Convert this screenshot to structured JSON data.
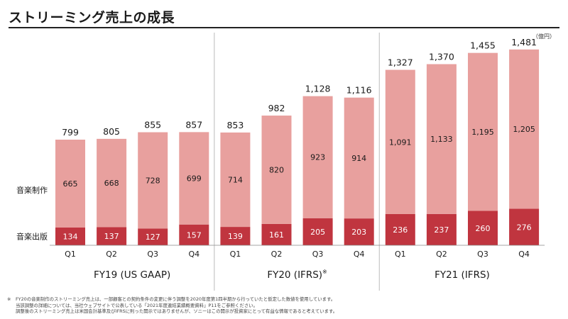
{
  "title": "ストリーミング売上の成長",
  "unit": "（億円）",
  "footnote": {
    "mark": "※",
    "lines": [
      "FY20の音楽制作のストリーミング売上は、一部顧客との契約条件の変更に伴う調整を2020年度第1四半期から行っていたと仮定した数値を使用しています。",
      "当該調整の詳細については、当社ウェブサイトで公表している「2021年度連結業績概要資料」P11をご参照ください。",
      "調整後のストリーミング売上は米国会計基準及びIFRSに則った開示ではありませんが、ソニーはこの開示が投資家にとって有益な情報であると考えています。"
    ]
  },
  "colors": {
    "recorded_music": "#e8a09e",
    "publishing": "#c0353f",
    "divider": "#bbbbbb"
  },
  "chart_data": {
    "type": "bar",
    "stacked": true,
    "categories": [
      "Q1",
      "Q2",
      "Q3",
      "Q4",
      "Q1",
      "Q2",
      "Q3",
      "Q4",
      "Q1",
      "Q2",
      "Q3",
      "Q4"
    ],
    "groups": [
      {
        "label": "FY19 (US GAAP)",
        "superscript": "",
        "start": 0,
        "end": 3
      },
      {
        "label": "FY20 (IFRS)",
        "superscript": "※",
        "start": 4,
        "end": 7
      },
      {
        "label": "FY21 (IFRS)",
        "superscript": "",
        "start": 8,
        "end": 11
      }
    ],
    "series": [
      {
        "name": "音楽出版",
        "values": [
          134,
          137,
          127,
          157,
          139,
          161,
          205,
          203,
          236,
          237,
          260,
          276
        ]
      },
      {
        "name": "音楽制作",
        "values": [
          665,
          668,
          728,
          699,
          714,
          820,
          923,
          914,
          1091,
          1133,
          1195,
          1205
        ]
      }
    ],
    "totals": [
      "799",
      "805",
      "855",
      "857",
      "853",
      "982",
      "1,128",
      "1,116",
      "1,327",
      "1,370",
      "1,455",
      "1,481"
    ],
    "segment_labels": {
      "音楽出版": [
        "134",
        "137",
        "127",
        "157",
        "139",
        "161",
        "205",
        "203",
        "236",
        "237",
        "260",
        "276"
      ],
      "音楽制作": [
        "665",
        "668",
        "728",
        "699",
        "714",
        "820",
        "923",
        "914",
        "1,091",
        "1,133",
        "1,195",
        "1,205"
      ]
    },
    "ylim": [
      0,
      1600
    ]
  }
}
